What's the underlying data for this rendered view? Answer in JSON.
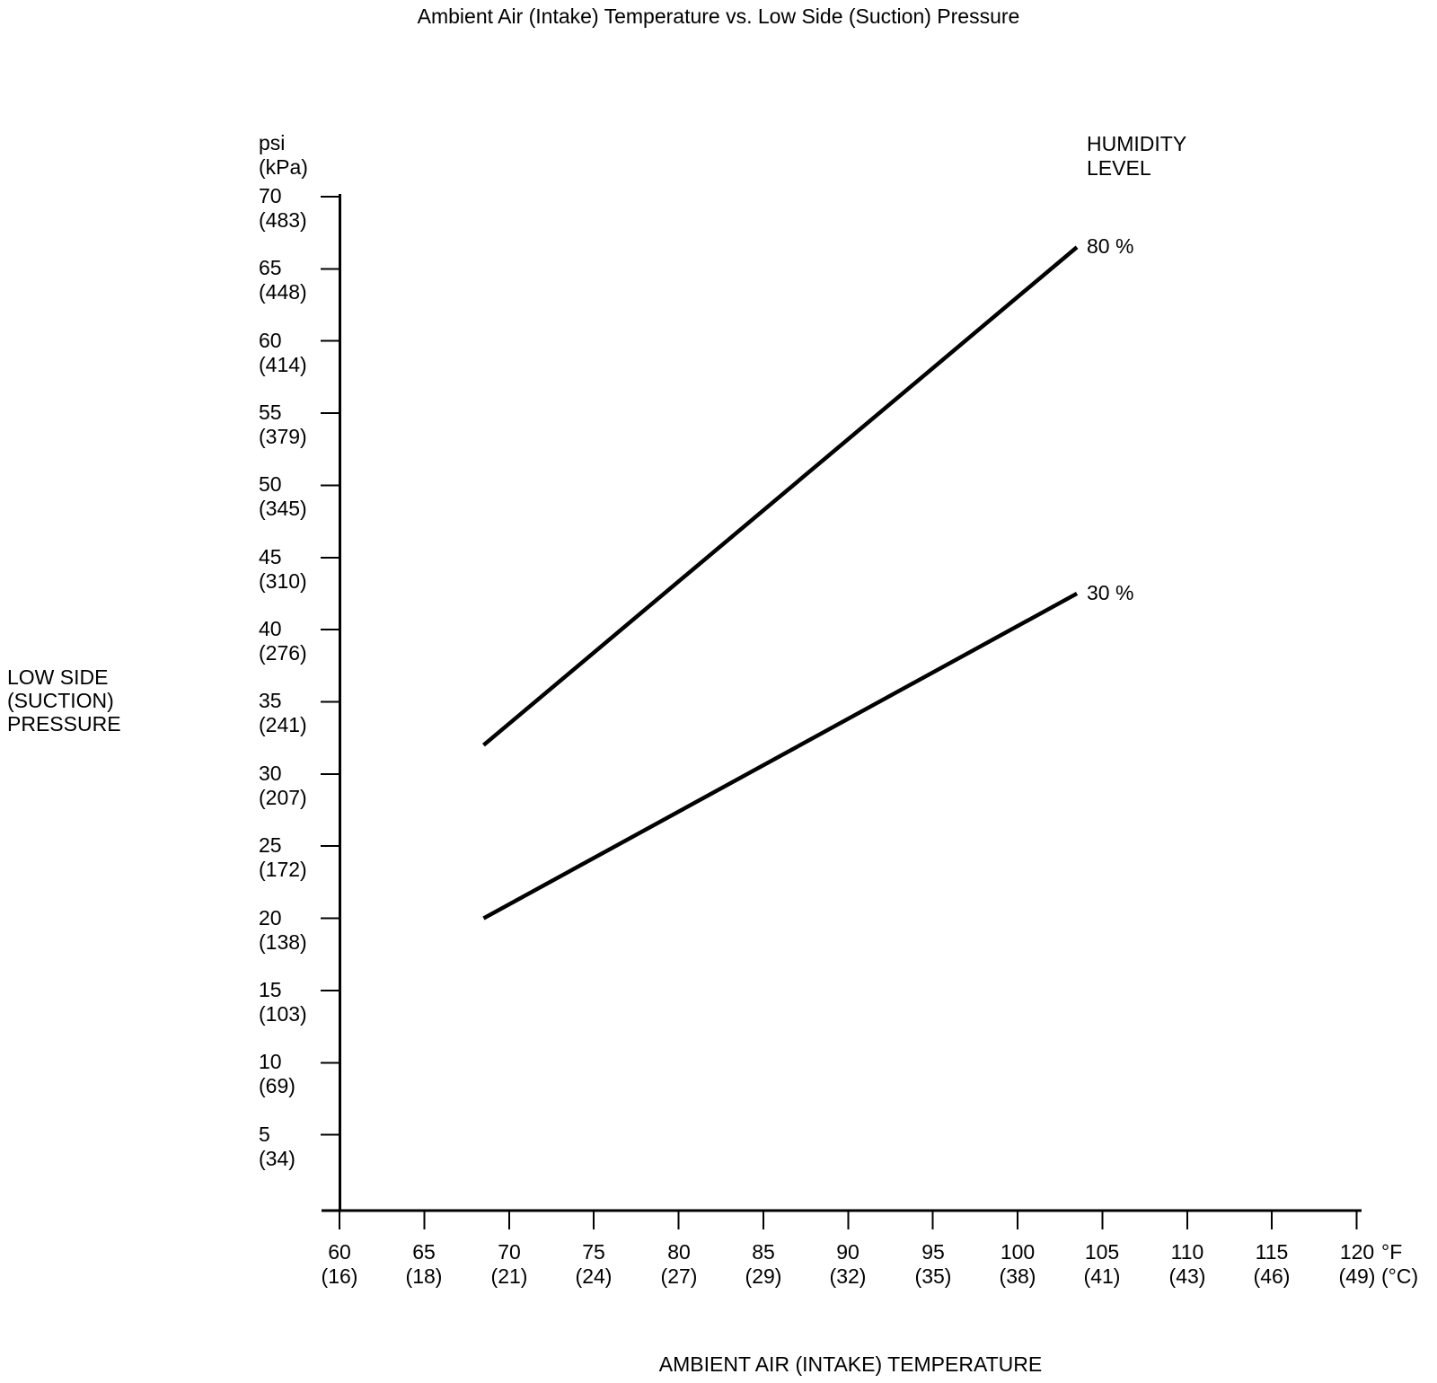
{
  "title": "Ambient Air (Intake) Temperature vs. Low Side (Suction) Pressure",
  "legend": {
    "title_lines": [
      "HUMIDITY",
      "LEVEL"
    ]
  },
  "chart_data": {
    "type": "line",
    "title": "Ambient Air (Intake) Temperature vs. Low Side (Suction) Pressure",
    "grid": false,
    "background_color": "#ffffff",
    "line_color": "#000000",
    "xlim": [
      60,
      120
    ],
    "ylim": [
      0,
      70
    ],
    "legend_position": "line-end-right",
    "x_axis": {
      "label": "AMBIENT AIR (INTAKE) TEMPERATURE",
      "unit_primary": "°F",
      "unit_secondary": "(°C)",
      "ticks": [
        {
          "f": 60,
          "c": 16
        },
        {
          "f": 65,
          "c": 18
        },
        {
          "f": 70,
          "c": 21
        },
        {
          "f": 75,
          "c": 24
        },
        {
          "f": 80,
          "c": 27
        },
        {
          "f": 85,
          "c": 29
        },
        {
          "f": 90,
          "c": 32
        },
        {
          "f": 95,
          "c": 35
        },
        {
          "f": 100,
          "c": 38
        },
        {
          "f": 105,
          "c": 41
        },
        {
          "f": 110,
          "c": 43
        },
        {
          "f": 115,
          "c": 46
        },
        {
          "f": 120,
          "c": 49
        }
      ]
    },
    "y_axis": {
      "label_lines": [
        "LOW SIDE",
        "(SUCTION)",
        "PRESSURE"
      ],
      "unit_primary": "psi",
      "unit_secondary": "(kPa)",
      "ticks": [
        {
          "psi": 70,
          "kpa": 483
        },
        {
          "psi": 65,
          "kpa": 448
        },
        {
          "psi": 60,
          "kpa": 414
        },
        {
          "psi": 55,
          "kpa": 379
        },
        {
          "psi": 50,
          "kpa": 345
        },
        {
          "psi": 45,
          "kpa": 310
        },
        {
          "psi": 40,
          "kpa": 276
        },
        {
          "psi": 35,
          "kpa": 241
        },
        {
          "psi": 30,
          "kpa": 207
        },
        {
          "psi": 25,
          "kpa": 172
        },
        {
          "psi": 20,
          "kpa": 138
        },
        {
          "psi": 15,
          "kpa": 103
        },
        {
          "psi": 10,
          "kpa": 69
        },
        {
          "psi": 5,
          "kpa": 34
        }
      ]
    },
    "series": [
      {
        "name": "80 %",
        "points": [
          {
            "f": 68.5,
            "psi": 32
          },
          {
            "f": 103.5,
            "psi": 66.5
          }
        ]
      },
      {
        "name": "30 %",
        "points": [
          {
            "f": 68.5,
            "psi": 20
          },
          {
            "f": 103.5,
            "psi": 42.5
          }
        ]
      }
    ]
  }
}
